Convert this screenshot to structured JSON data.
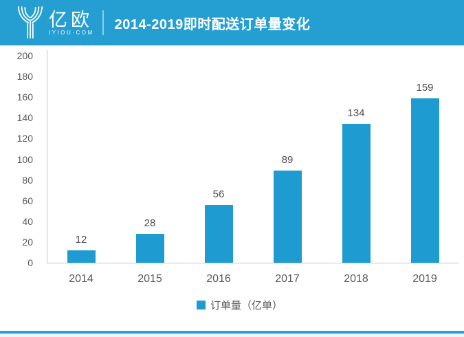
{
  "header": {
    "logo_text": "亿欧",
    "logo_subtext": "IYIOU·COM",
    "title": "2014-2019即时配送订单量变化"
  },
  "colors": {
    "header_bg": "#259FD2",
    "bar": "#1E9BD0",
    "axis": "#C6C6C6",
    "tick_text": "#595959",
    "value_text": "#4D4D4D",
    "footer_line": "#2AA0D2",
    "footer_tint": "#EAF6FB"
  },
  "chart_data": {
    "type": "bar",
    "title": "2014-2019即时配送订单量变化",
    "categories": [
      "2014",
      "2015",
      "2016",
      "2017",
      "2018",
      "2019"
    ],
    "series": [
      {
        "name": "订单量（亿单）",
        "values": [
          12,
          28,
          56,
          89,
          134,
          159
        ]
      }
    ],
    "xlabel": "",
    "ylabel": "",
    "ylim": [
      0,
      200
    ],
    "ytick_step": 20,
    "grid": false,
    "value_labels": true,
    "legend_position": "bottom"
  },
  "legend": {
    "label": "订单量（亿单）"
  }
}
